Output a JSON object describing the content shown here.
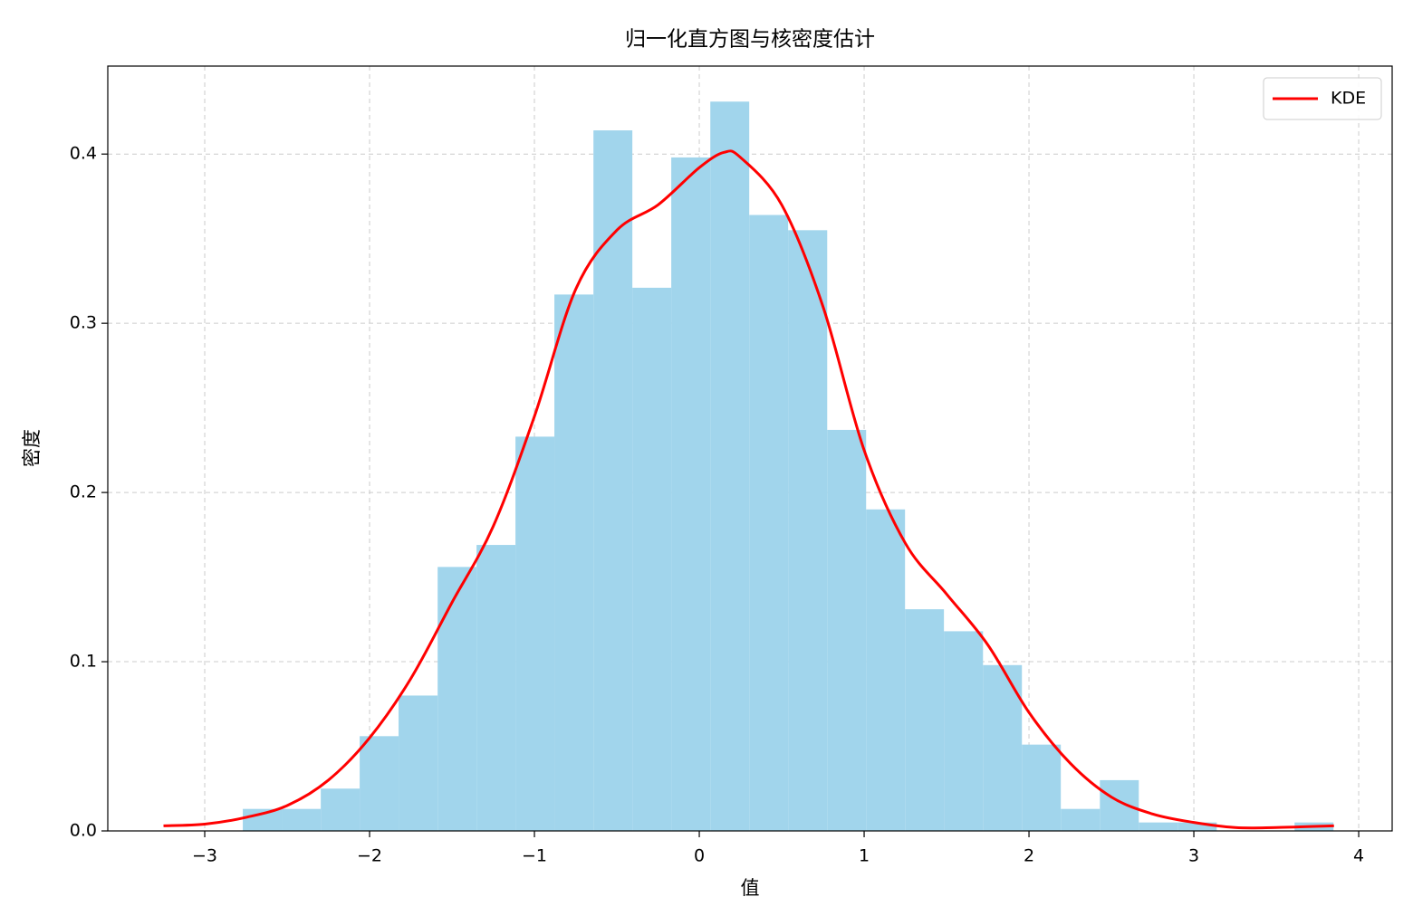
{
  "chart_data": {
    "type": "histogram",
    "title": "归一化直方图与核密度估计",
    "x_label": "值",
    "y_label": "密度",
    "bins": [
      -2.769,
      -2.533,
      -2.296,
      -2.06,
      -1.824,
      -1.587,
      -1.351,
      -1.115,
      -0.879,
      -0.642,
      -0.406,
      -0.17,
      0.067,
      0.303,
      0.539,
      0.776,
      1.012,
      1.248,
      1.484,
      1.721,
      1.957,
      2.193,
      2.43,
      2.666,
      2.902,
      3.139,
      3.375,
      3.611,
      3.847
    ],
    "values": [
      0.013,
      0.013,
      0.025,
      0.056,
      0.08,
      0.156,
      0.169,
      0.233,
      0.317,
      0.414,
      0.321,
      0.398,
      0.431,
      0.364,
      0.355,
      0.237,
      0.19,
      0.131,
      0.118,
      0.098,
      0.051,
      0.013,
      0.03,
      0.005,
      0.005,
      0,
      0,
      0.005
    ],
    "color": "#a1d5ec",
    "lines": [
      {
        "name": "KDE",
        "color": "#ff0000",
        "x": [
          -3.25,
          -3.0,
          -2.75,
          -2.5,
          -2.25,
          -2.0,
          -1.75,
          -1.5,
          -1.25,
          -1.0,
          -0.75,
          -0.5,
          -0.25,
          0.0,
          0.15,
          0.25,
          0.5,
          0.75,
          1.0,
          1.25,
          1.5,
          1.75,
          2.0,
          2.25,
          2.5,
          2.75,
          3.0,
          3.25,
          3.5,
          3.85
        ],
        "values": [
          0.003,
          0.004,
          0.008,
          0.015,
          0.03,
          0.055,
          0.09,
          0.135,
          0.18,
          0.245,
          0.32,
          0.355,
          0.37,
          0.392,
          0.401,
          0.398,
          0.37,
          0.31,
          0.225,
          0.17,
          0.14,
          0.11,
          0.07,
          0.04,
          0.02,
          0.01,
          0.005,
          0.002,
          0.002,
          0.003
        ]
      }
    ],
    "xlim": [
      -3.588,
      4.203
    ],
    "ylim": [
      0,
      0.452
    ],
    "xticks": [
      {
        "value": -3,
        "label": "−3"
      },
      {
        "value": -2,
        "label": "−2"
      },
      {
        "value": -1,
        "label": "−1"
      },
      0,
      1,
      2,
      3,
      4
    ],
    "yticks": [
      {
        "value": 0,
        "label": "0.0"
      },
      0.1,
      0.2,
      0.3,
      0.4
    ],
    "grid": true,
    "legend": "upper right"
  }
}
